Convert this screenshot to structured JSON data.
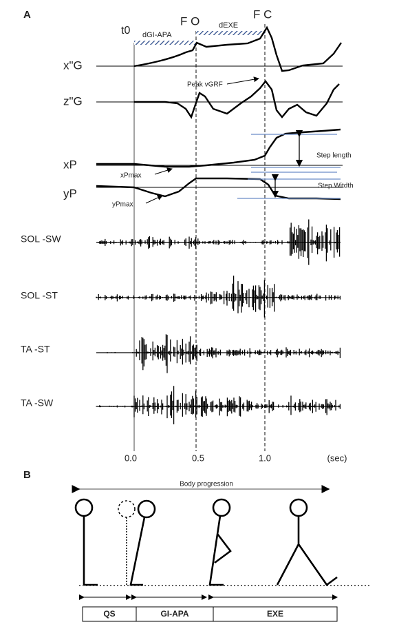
{
  "panel_a": {
    "label": "A",
    "events": {
      "t0": "t0",
      "fo": "F O",
      "fc": "F C"
    },
    "phases": {
      "apa": "dGI-APA",
      "exe": "dEXE"
    },
    "traces": [
      "x\"G",
      "z\"G",
      "xP",
      "yP",
      "SOL -SW",
      "SOL -ST",
      "TA -ST",
      "TA -SW"
    ],
    "annotations": {
      "peak": "Peak vGRF",
      "xpmax": "xPmax",
      "ypmax": "yPmax",
      "step_length": "Step length",
      "step_width": "Step Witdth"
    },
    "axis": {
      "ticks": [
        "0.0",
        "0.5",
        "1.0"
      ],
      "unit": "(sec)"
    }
  },
  "panel_b": {
    "label": "B",
    "progression": "Body progression",
    "phases": [
      "QS",
      "GI-APA",
      "EXE"
    ]
  }
}
